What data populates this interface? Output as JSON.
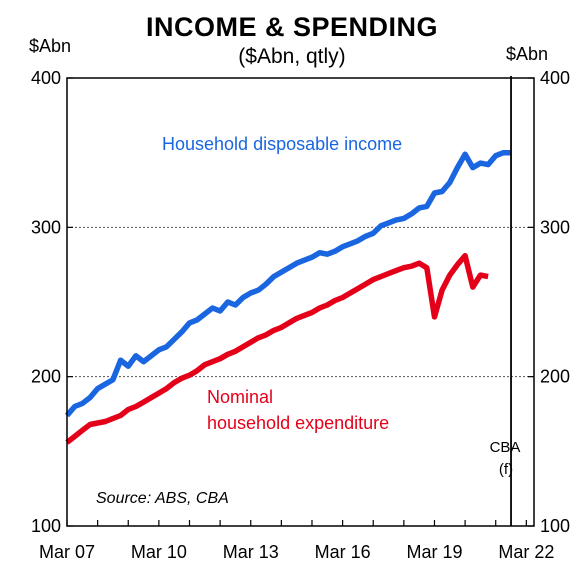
{
  "chart_data": {
    "type": "line",
    "title": "INCOME & SPENDING",
    "subtitle": "($Abn, qtly)",
    "y_unit_left": "$Abn",
    "y_unit_right": "$Abn",
    "ylim": [
      100,
      400
    ],
    "yticks": [
      "100",
      "200",
      "300",
      "400"
    ],
    "xticks": [
      "Mar 07",
      "Mar 10",
      "Mar 13",
      "Mar 16",
      "Mar 19",
      "Mar 22"
    ],
    "x_range_quarters": [
      0,
      61
    ],
    "grid_values": [
      200,
      300
    ],
    "forecast_start_quarter": 58,
    "forecast_label": [
      "CBA",
      "(f)"
    ],
    "source": "Source: ABS, CBA",
    "colors": {
      "income": "#1a66e0",
      "expenditure": "#e5001a"
    },
    "series": [
      {
        "name_lines": [
          "Household disposable income"
        ],
        "color": "#1a66e0",
        "values": [
          [
            0,
            174
          ],
          [
            1,
            180
          ],
          [
            2,
            182
          ],
          [
            3,
            186
          ],
          [
            4,
            192
          ],
          [
            5,
            195
          ],
          [
            6,
            198
          ],
          [
            7,
            211
          ],
          [
            8,
            207
          ],
          [
            9,
            214
          ],
          [
            10,
            210
          ],
          [
            11,
            214
          ],
          [
            12,
            218
          ],
          [
            13,
            220
          ],
          [
            14,
            225
          ],
          [
            15,
            230
          ],
          [
            16,
            236
          ],
          [
            17,
            238
          ],
          [
            18,
            242
          ],
          [
            19,
            246
          ],
          [
            20,
            244
          ],
          [
            21,
            250
          ],
          [
            22,
            248
          ],
          [
            23,
            253
          ],
          [
            24,
            256
          ],
          [
            25,
            258
          ],
          [
            26,
            262
          ],
          [
            27,
            267
          ],
          [
            28,
            270
          ],
          [
            29,
            273
          ],
          [
            30,
            276
          ],
          [
            31,
            278
          ],
          [
            32,
            280
          ],
          [
            33,
            283
          ],
          [
            34,
            282
          ],
          [
            35,
            284
          ],
          [
            36,
            287
          ],
          [
            37,
            289
          ],
          [
            38,
            291
          ],
          [
            39,
            294
          ],
          [
            40,
            296
          ],
          [
            41,
            301
          ],
          [
            42,
            303
          ],
          [
            43,
            305
          ],
          [
            44,
            306
          ],
          [
            45,
            309
          ],
          [
            46,
            313
          ],
          [
            47,
            314
          ],
          [
            48,
            323
          ],
          [
            49,
            324
          ],
          [
            50,
            330
          ],
          [
            51,
            340
          ],
          [
            52,
            349
          ],
          [
            53,
            340
          ],
          [
            54,
            343
          ],
          [
            55,
            342
          ],
          [
            56,
            348
          ],
          [
            57,
            350
          ],
          [
            58,
            350
          ]
        ]
      },
      {
        "name_lines": [
          "Nominal",
          "household expenditure"
        ],
        "color": "#e5001a",
        "values": [
          [
            0,
            156
          ],
          [
            1,
            160
          ],
          [
            2,
            164
          ],
          [
            3,
            168
          ],
          [
            4,
            169
          ],
          [
            5,
            170
          ],
          [
            6,
            172
          ],
          [
            7,
            174
          ],
          [
            8,
            178
          ],
          [
            9,
            180
          ],
          [
            10,
            183
          ],
          [
            11,
            186
          ],
          [
            12,
            189
          ],
          [
            13,
            192
          ],
          [
            14,
            196
          ],
          [
            15,
            199
          ],
          [
            16,
            201
          ],
          [
            17,
            204
          ],
          [
            18,
            208
          ],
          [
            19,
            210
          ],
          [
            20,
            212
          ],
          [
            21,
            215
          ],
          [
            22,
            217
          ],
          [
            23,
            220
          ],
          [
            24,
            223
          ],
          [
            25,
            226
          ],
          [
            26,
            228
          ],
          [
            27,
            231
          ],
          [
            28,
            233
          ],
          [
            29,
            236
          ],
          [
            30,
            239
          ],
          [
            31,
            241
          ],
          [
            32,
            243
          ],
          [
            33,
            246
          ],
          [
            34,
            248
          ],
          [
            35,
            251
          ],
          [
            36,
            253
          ],
          [
            37,
            256
          ],
          [
            38,
            259
          ],
          [
            39,
            262
          ],
          [
            40,
            265
          ],
          [
            41,
            267
          ],
          [
            42,
            269
          ],
          [
            43,
            271
          ],
          [
            44,
            273
          ],
          [
            45,
            274
          ],
          [
            46,
            276
          ],
          [
            47,
            273
          ],
          [
            48,
            240
          ],
          [
            49,
            258
          ],
          [
            50,
            268
          ],
          [
            51,
            275
          ],
          [
            52,
            281
          ],
          [
            53,
            260
          ],
          [
            54,
            268
          ],
          [
            55,
            267
          ]
        ]
      }
    ]
  }
}
